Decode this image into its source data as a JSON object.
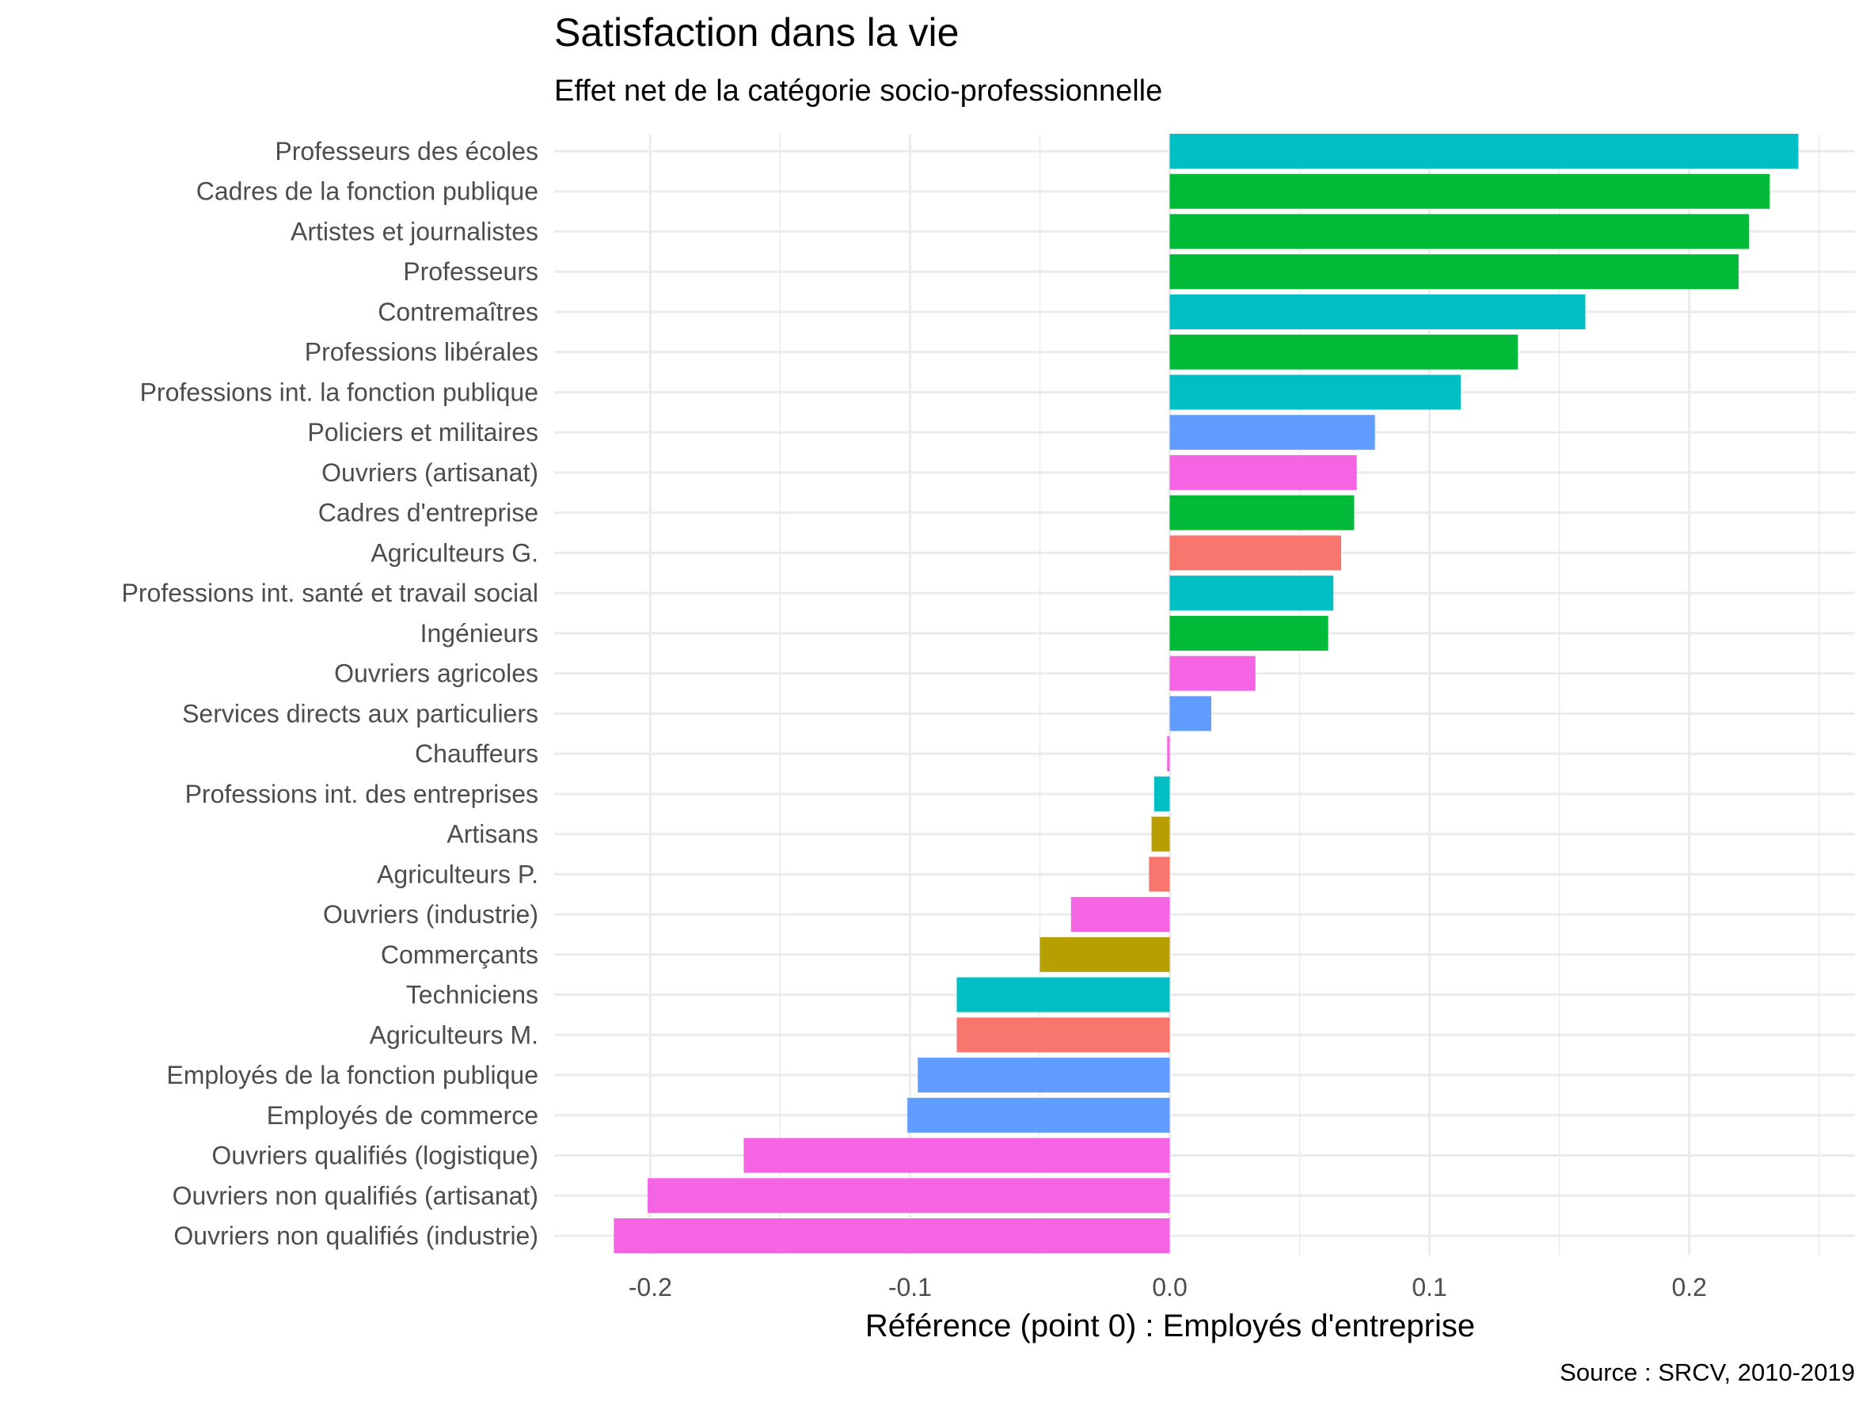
{
  "chart_data": {
    "type": "bar",
    "orientation": "horizontal",
    "title": "Satisfaction dans la vie",
    "subtitle": "Effet net de la catégorie socio-professionnelle",
    "xlabel": "Référence (point 0) : Employés d'entreprise",
    "ylabel": "",
    "caption": "Source : SRCV, 2010-2019",
    "xlim": [
      -0.236,
      0.253
    ],
    "x_ticks": [
      -0.2,
      -0.1,
      0.0,
      0.1,
      0.2
    ],
    "x_tick_labels": [
      "-0.2",
      "-0.1",
      "0.0",
      "0.1",
      "0.2"
    ],
    "grid": true,
    "legend": "none",
    "categories": [
      "Professeurs des écoles",
      "Cadres de la fonction publique",
      "Artistes et journalistes",
      "Professeurs",
      "Contremaîtres",
      "Professions libérales",
      "Professions int. la fonction publique",
      "Policiers et militaires",
      "Ouvriers (artisanat)",
      "Cadres d'entreprise",
      "Agriculteurs G.",
      "Professions int. santé et travail social",
      "Ingénieurs",
      "Ouvriers agricoles",
      "Services directs aux particuliers",
      "Chauffeurs",
      "Professions int. des entreprises",
      "Artisans",
      "Agriculteurs P.",
      "Ouvriers (industrie)",
      "Commerçants",
      "Techniciens",
      "Agriculteurs M.",
      "Employés de la fonction publique",
      "Employés de commerce",
      "Ouvriers qualifiés (logistique)",
      "Ouvriers non qualifiés (artisanat)",
      "Ouvriers non qualifiés (industrie)"
    ],
    "values": [
      0.242,
      0.231,
      0.223,
      0.219,
      0.16,
      0.134,
      0.112,
      0.079,
      0.072,
      0.071,
      0.066,
      0.063,
      0.061,
      0.033,
      0.016,
      -0.001,
      -0.006,
      -0.007,
      -0.008,
      -0.038,
      -0.05,
      -0.082,
      -0.082,
      -0.097,
      -0.101,
      -0.164,
      -0.201,
      -0.214
    ],
    "colors": [
      "#00BFC4",
      "#00BA38",
      "#00BA38",
      "#00BA38",
      "#00BFC4",
      "#00BA38",
      "#00BFC4",
      "#619CFF",
      "#F564E3",
      "#00BA38",
      "#F8766D",
      "#00BFC4",
      "#00BA38",
      "#F564E3",
      "#619CFF",
      "#F564E3",
      "#00BFC4",
      "#B79F00",
      "#F8766D",
      "#F564E3",
      "#B79F00",
      "#00BFC4",
      "#F8766D",
      "#619CFF",
      "#619CFF",
      "#F564E3",
      "#F564E3",
      "#F564E3"
    ]
  }
}
